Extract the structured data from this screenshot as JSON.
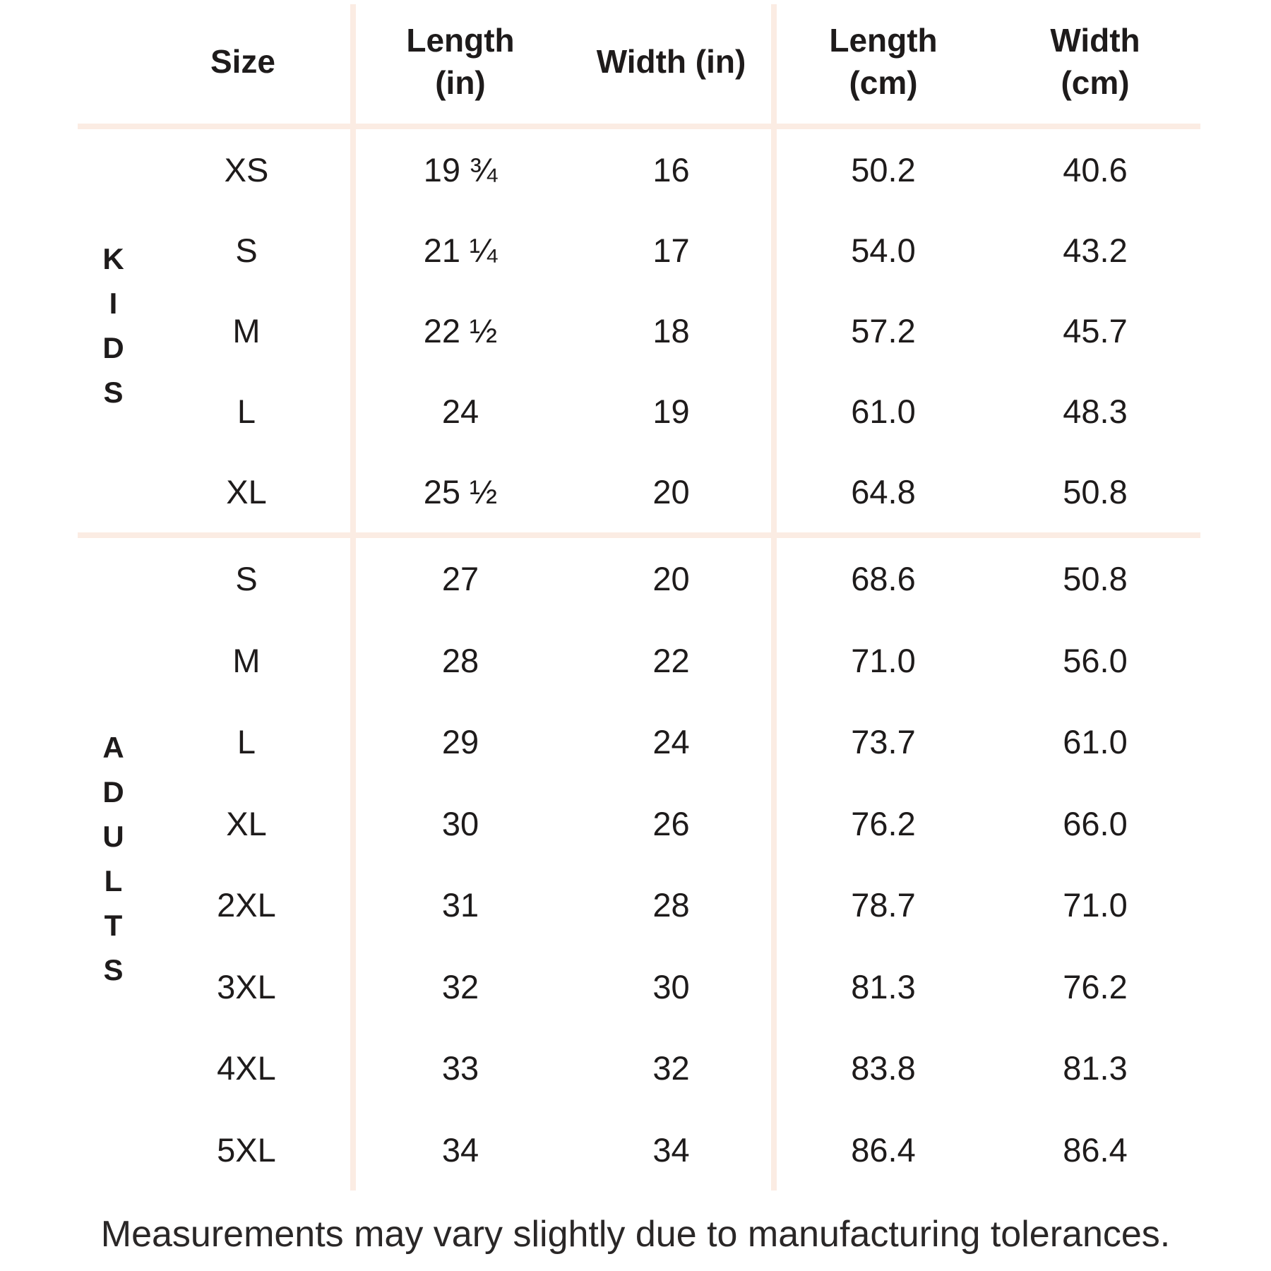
{
  "chart_data": {
    "type": "table",
    "column_labels": [
      "Size",
      "Length (in)",
      "Width (in)",
      "Length (cm)",
      "Width (cm)"
    ],
    "columns": [
      {
        "line1": "Size",
        "line2": ""
      },
      {
        "line1": "Length",
        "line2": "(in)"
      },
      {
        "line1": "Width (in)",
        "line2": ""
      },
      {
        "line1": "Length",
        "line2": "(cm)"
      },
      {
        "line1": "Width",
        "line2": "(cm)"
      }
    ],
    "sections": [
      {
        "label": "KIDS",
        "rows": [
          {
            "size": "XS",
            "length_in": "19 ¾",
            "width_in": "16",
            "length_cm": "50.2",
            "width_cm": "40.6"
          },
          {
            "size": "S",
            "length_in": "21 ¼",
            "width_in": "17",
            "length_cm": "54.0",
            "width_cm": "43.2"
          },
          {
            "size": "M",
            "length_in": "22 ½",
            "width_in": "18",
            "length_cm": "57.2",
            "width_cm": "45.7"
          },
          {
            "size": "L",
            "length_in": "24",
            "width_in": "19",
            "length_cm": "61.0",
            "width_cm": "48.3"
          },
          {
            "size": "XL",
            "length_in": "25 ½",
            "width_in": "20",
            "length_cm": "64.8",
            "width_cm": "50.8"
          }
        ]
      },
      {
        "label": "ADULTS",
        "rows": [
          {
            "size": "S",
            "length_in": "27",
            "width_in": "20",
            "length_cm": "68.6",
            "width_cm": "50.8"
          },
          {
            "size": "M",
            "length_in": "28",
            "width_in": "22",
            "length_cm": "71.0",
            "width_cm": "56.0"
          },
          {
            "size": "L",
            "length_in": "29",
            "width_in": "24",
            "length_cm": "73.7",
            "width_cm": "61.0"
          },
          {
            "size": "XL",
            "length_in": "30",
            "width_in": "26",
            "length_cm": "76.2",
            "width_cm": "66.0"
          },
          {
            "size": "2XL",
            "length_in": "31",
            "width_in": "28",
            "length_cm": "78.7",
            "width_cm": "71.0"
          },
          {
            "size": "3XL",
            "length_in": "32",
            "width_in": "30",
            "length_cm": "81.3",
            "width_cm": "76.2"
          },
          {
            "size": "4XL",
            "length_in": "33",
            "width_in": "32",
            "length_cm": "83.8",
            "width_cm": "81.3"
          },
          {
            "size": "5XL",
            "length_in": "34",
            "width_in": "34",
            "length_cm": "86.4",
            "width_cm": "86.4"
          }
        ]
      }
    ],
    "footer_note": "Measurements may vary slightly due to manufacturing tolerances."
  },
  "colors": {
    "divider": "#fbece3",
    "text": "#1e1b1b",
    "footer_text": "#2a2727"
  }
}
